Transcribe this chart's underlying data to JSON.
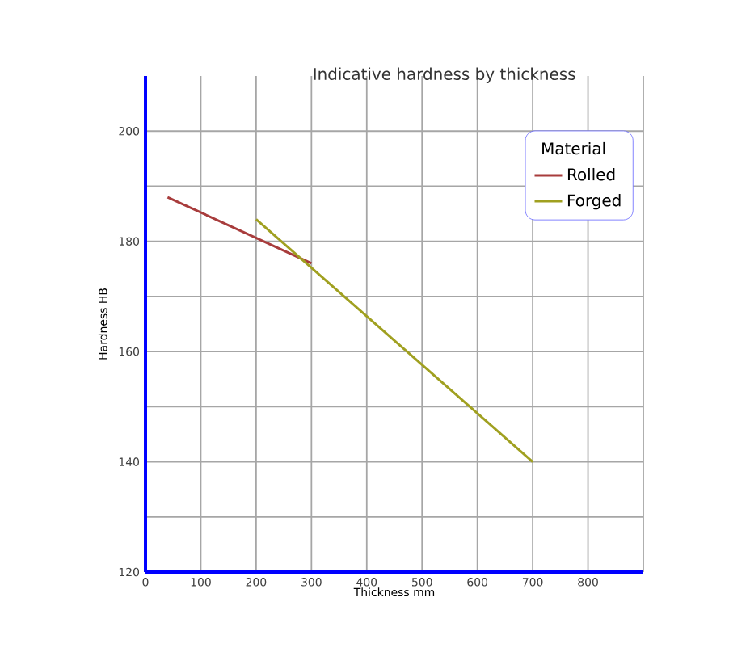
{
  "chart_data": {
    "type": "line",
    "title": "Indicative hardness by thickness",
    "xlabel": "Thickness mm",
    "ylabel": "Hardness HB",
    "legend_title": "Material",
    "series": [
      {
        "name": "Rolled",
        "color": "#a83c3c",
        "x": [
          40,
          300
        ],
        "values": [
          188,
          176
        ]
      },
      {
        "name": "Forged",
        "color": "#a0a020",
        "x": [
          200,
          700
        ],
        "values": [
          184,
          140
        ]
      }
    ],
    "xlim": [
      0,
      900
    ],
    "ylim": [
      120,
      210
    ],
    "xticks": [
      0,
      100,
      200,
      300,
      400,
      500,
      600,
      700,
      800,
      {
        "value": 900,
        "label": null
      }
    ],
    "yticks": [
      120,
      {
        "value": 130,
        "label": null
      },
      140,
      {
        "value": 150,
        "label": null
      },
      160,
      {
        "value": 170,
        "label": null
      },
      180,
      {
        "value": 190,
        "label": null
      },
      200
    ],
    "grid": true,
    "legend": "top right",
    "marker": "none",
    "line_style": "solid"
  }
}
